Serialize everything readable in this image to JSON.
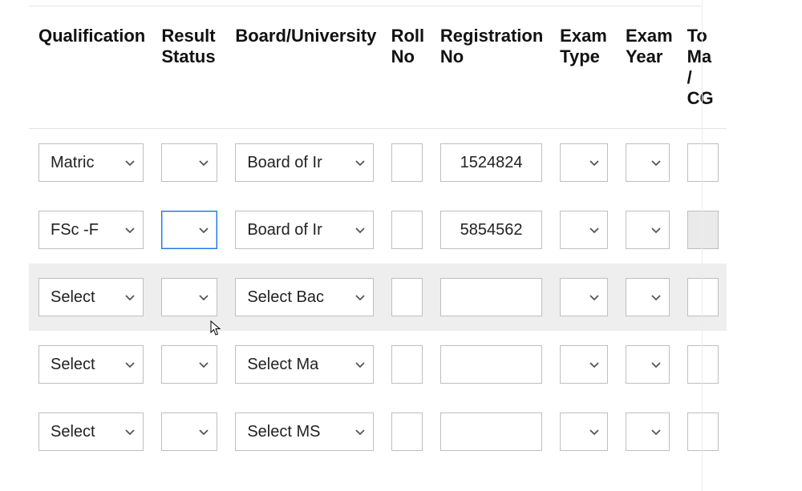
{
  "columns": {
    "qualification": "Qualification",
    "result_status": "Result Status",
    "board": "Board/University",
    "roll_no": "Roll No",
    "reg_no": "Registration No",
    "exam_type": "Exam Type",
    "exam_year": "Exam Year",
    "total_marks": "Total Marks / CGPA"
  },
  "rows": [
    {
      "qualification": "Matric",
      "result_status": "",
      "board": "Board of Ir",
      "roll_no": "",
      "reg_no": "1524824",
      "exam_type": "",
      "exam_year": "",
      "total_marks": ""
    },
    {
      "qualification": "FSc -F",
      "result_status": "",
      "board": "Board of Ir",
      "roll_no": "",
      "reg_no": "5854562",
      "exam_type": "",
      "exam_year": "",
      "total_marks": ""
    },
    {
      "qualification": "Select",
      "result_status": "",
      "board": "Select Bac",
      "roll_no": "",
      "reg_no": "",
      "exam_type": "",
      "exam_year": "",
      "total_marks": ""
    },
    {
      "qualification": "Select",
      "result_status": "",
      "board": "Select Ma",
      "roll_no": "",
      "reg_no": "",
      "exam_type": "",
      "exam_year": "",
      "total_marks": ""
    },
    {
      "qualification": "Select",
      "result_status": "",
      "board": "Select MS",
      "roll_no": "",
      "reg_no": "",
      "exam_type": "",
      "exam_year": "",
      "total_marks": ""
    }
  ],
  "column_trunc": {
    "total_marks_1": "To",
    "total_marks_2": "Ma",
    "total_marks_3": "/",
    "total_marks_4": "CG"
  }
}
